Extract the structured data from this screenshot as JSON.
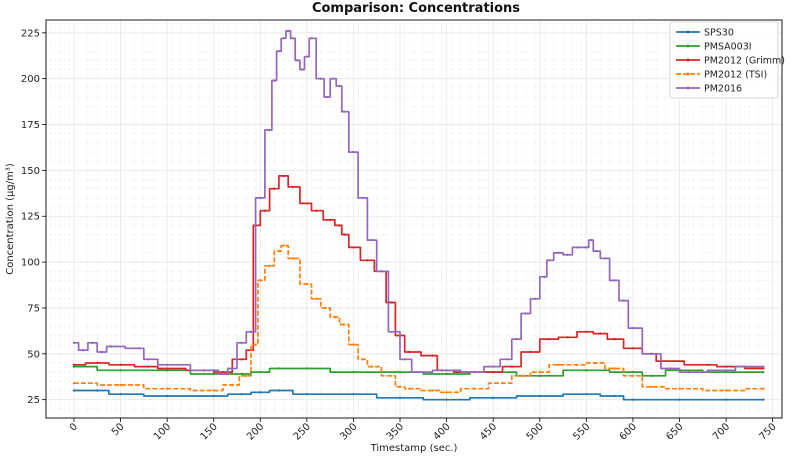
{
  "chart_data": {
    "type": "line",
    "title": "Comparison: Concentrations",
    "xlabel": "Timestamp (sec.)",
    "ylabel": "Concentration (μg/m³)",
    "xlim": [
      -30,
      760
    ],
    "ylim": [
      15,
      232
    ],
    "x_ticks": [
      0,
      50,
      100,
      150,
      200,
      250,
      300,
      350,
      400,
      450,
      500,
      550,
      600,
      650,
      700,
      750
    ],
    "y_ticks": [
      25,
      50,
      75,
      100,
      125,
      150,
      175,
      200,
      225
    ],
    "grid": true,
    "legend_position": "top-right",
    "series": [
      {
        "name": "SPS30",
        "color": "#1f77b4",
        "style": "solid",
        "points": [
          [
            0,
            30
          ],
          [
            25,
            30
          ],
          [
            50,
            28
          ],
          [
            100,
            27
          ],
          [
            150,
            27
          ],
          [
            180,
            28
          ],
          [
            200,
            29
          ],
          [
            220,
            30
          ],
          [
            250,
            28
          ],
          [
            300,
            28
          ],
          [
            350,
            26
          ],
          [
            400,
            25
          ],
          [
            450,
            26
          ],
          [
            500,
            27
          ],
          [
            550,
            28
          ],
          [
            580,
            27
          ],
          [
            600,
            25
          ],
          [
            650,
            25
          ],
          [
            700,
            25
          ],
          [
            740,
            25
          ]
        ]
      },
      {
        "name": "PMSA003I",
        "color": "#2ca02c",
        "style": "solid",
        "points": [
          [
            0,
            43
          ],
          [
            50,
            41
          ],
          [
            100,
            41
          ],
          [
            150,
            39
          ],
          [
            180,
            39
          ],
          [
            200,
            40
          ],
          [
            220,
            42
          ],
          [
            250,
            42
          ],
          [
            300,
            40
          ],
          [
            350,
            40
          ],
          [
            400,
            39
          ],
          [
            450,
            40
          ],
          [
            500,
            38
          ],
          [
            550,
            41
          ],
          [
            600,
            40
          ],
          [
            620,
            38
          ],
          [
            650,
            41
          ],
          [
            700,
            40
          ],
          [
            740,
            40
          ]
        ]
      },
      {
        "name": "PM2012 (Grimm)",
        "color": "#d62728",
        "style": "solid",
        "points": [
          [
            0,
            44
          ],
          [
            25,
            45
          ],
          [
            50,
            44
          ],
          [
            80,
            43
          ],
          [
            100,
            42
          ],
          [
            140,
            41
          ],
          [
            160,
            40
          ],
          [
            180,
            47
          ],
          [
            190,
            52
          ],
          [
            195,
            120
          ],
          [
            205,
            128
          ],
          [
            215,
            140
          ],
          [
            225,
            147
          ],
          [
            235,
            141
          ],
          [
            250,
            132
          ],
          [
            260,
            128
          ],
          [
            275,
            123
          ],
          [
            285,
            120
          ],
          [
            290,
            115
          ],
          [
            300,
            108
          ],
          [
            315,
            101
          ],
          [
            330,
            95
          ],
          [
            340,
            78
          ],
          [
            350,
            60
          ],
          [
            360,
            51
          ],
          [
            385,
            49
          ],
          [
            395,
            41
          ],
          [
            420,
            40
          ],
          [
            450,
            40
          ],
          [
            470,
            43
          ],
          [
            490,
            51
          ],
          [
            510,
            58
          ],
          [
            530,
            59
          ],
          [
            550,
            62
          ],
          [
            565,
            61
          ],
          [
            580,
            58
          ],
          [
            600,
            53
          ],
          [
            620,
            50
          ],
          [
            630,
            46
          ],
          [
            680,
            44
          ],
          [
            700,
            43
          ],
          [
            740,
            42
          ]
        ]
      },
      {
        "name": "PM2012 (TSI)",
        "color": "#ff7f0e",
        "style": "dashed",
        "points": [
          [
            0,
            34
          ],
          [
            50,
            33
          ],
          [
            100,
            31
          ],
          [
            150,
            30
          ],
          [
            170,
            33
          ],
          [
            185,
            38
          ],
          [
            195,
            55
          ],
          [
            200,
            90
          ],
          [
            210,
            98
          ],
          [
            220,
            106
          ],
          [
            225,
            109
          ],
          [
            235,
            102
          ],
          [
            250,
            88
          ],
          [
            260,
            80
          ],
          [
            270,
            75
          ],
          [
            280,
            70
          ],
          [
            290,
            66
          ],
          [
            300,
            55
          ],
          [
            310,
            47
          ],
          [
            320,
            43
          ],
          [
            340,
            38
          ],
          [
            350,
            32
          ],
          [
            360,
            31
          ],
          [
            385,
            30
          ],
          [
            400,
            29
          ],
          [
            430,
            31
          ],
          [
            460,
            34
          ],
          [
            480,
            38
          ],
          [
            500,
            40
          ],
          [
            520,
            44
          ],
          [
            540,
            44
          ],
          [
            560,
            45
          ],
          [
            580,
            42
          ],
          [
            600,
            38
          ],
          [
            620,
            32
          ],
          [
            650,
            31
          ],
          [
            700,
            30
          ],
          [
            740,
            31
          ]
        ]
      },
      {
        "name": "PM2016",
        "color": "#9467bd",
        "style": "solid",
        "points": [
          [
            0,
            56
          ],
          [
            10,
            52
          ],
          [
            20,
            56
          ],
          [
            30,
            51
          ],
          [
            40,
            54
          ],
          [
            70,
            53
          ],
          [
            80,
            47
          ],
          [
            100,
            44
          ],
          [
            150,
            41
          ],
          [
            160,
            39
          ],
          [
            170,
            42
          ],
          [
            180,
            56
          ],
          [
            190,
            62
          ],
          [
            200,
            135
          ],
          [
            210,
            172
          ],
          [
            215,
            199
          ],
          [
            220,
            215
          ],
          [
            225,
            222
          ],
          [
            230,
            226
          ],
          [
            235,
            222
          ],
          [
            240,
            210
          ],
          [
            245,
            205
          ],
          [
            250,
            212
          ],
          [
            255,
            222
          ],
          [
            265,
            200
          ],
          [
            272,
            190
          ],
          [
            278,
            200
          ],
          [
            285,
            196
          ],
          [
            290,
            182
          ],
          [
            300,
            160
          ],
          [
            310,
            135
          ],
          [
            320,
            112
          ],
          [
            330,
            95
          ],
          [
            345,
            62
          ],
          [
            355,
            47
          ],
          [
            370,
            40
          ],
          [
            400,
            41
          ],
          [
            430,
            40
          ],
          [
            450,
            43
          ],
          [
            465,
            47
          ],
          [
            475,
            58
          ],
          [
            485,
            72
          ],
          [
            495,
            80
          ],
          [
            505,
            92
          ],
          [
            510,
            101
          ],
          [
            520,
            105
          ],
          [
            530,
            104
          ],
          [
            540,
            108
          ],
          [
            550,
            108
          ],
          [
            555,
            112
          ],
          [
            560,
            106
          ],
          [
            570,
            102
          ],
          [
            580,
            90
          ],
          [
            590,
            79
          ],
          [
            600,
            64
          ],
          [
            620,
            50
          ],
          [
            640,
            42
          ],
          [
            660,
            40
          ],
          [
            700,
            41
          ],
          [
            720,
            43
          ],
          [
            740,
            43
          ]
        ]
      }
    ]
  }
}
